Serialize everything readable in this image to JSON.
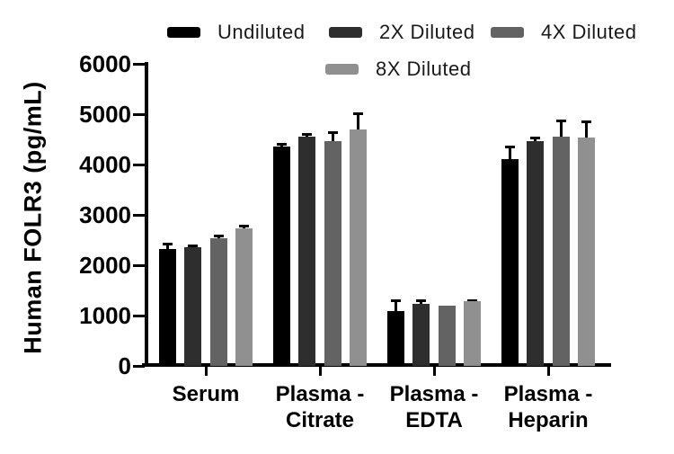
{
  "chart_data": {
    "type": "bar",
    "title": "",
    "ylabel": "Human FOLR3 (pg/mL)",
    "xlabel": "",
    "ylim": [
      0,
      6000
    ],
    "yticks": [
      0,
      1000,
      2000,
      3000,
      4000,
      5000,
      6000
    ],
    "grid": false,
    "legend_position": "top",
    "error_bars": "upper only, black",
    "categories": [
      "Serum",
      "Plasma - Citrate",
      "Plasma - EDTA",
      "Plasma - Heparin"
    ],
    "category_label_lines": [
      [
        "Serum"
      ],
      [
        "Plasma -",
        "Citrate"
      ],
      [
        "Plasma -",
        "EDTA"
      ],
      [
        "Plasma -",
        "Heparin"
      ]
    ],
    "series": [
      {
        "name": "Undiluted",
        "color": "#000000",
        "values": [
          2320,
          4360,
          1090,
          4100
        ],
        "errors": [
          130,
          60,
          230,
          270
        ]
      },
      {
        "name": "2X Diluted",
        "color": "#2e2e2e",
        "values": [
          2350,
          4560,
          1230,
          4470
        ],
        "errors": [
          60,
          60,
          100,
          90
        ]
      },
      {
        "name": "4X Diluted",
        "color": "#636363",
        "values": [
          2540,
          4460,
          1200,
          4550
        ],
        "errors": [
          70,
          200,
          0,
          340
        ]
      },
      {
        "name": "8X Diluted",
        "color": "#909090",
        "values": [
          2740,
          4690,
          1280,
          4530
        ],
        "errors": [
          70,
          350,
          50,
          350
        ]
      }
    ]
  },
  "colors": {
    "background": "#ffffff",
    "axis": "#000000",
    "bar_undiluted": "#000000",
    "bar_2x": "#2e2e2e",
    "bar_4x": "#636363",
    "bar_8x": "#909090"
  }
}
